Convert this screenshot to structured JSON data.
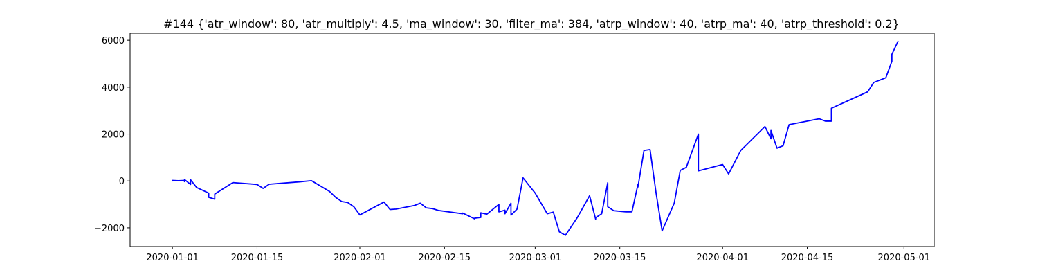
{
  "chart_data": {
    "type": "line",
    "title": "#144 {'atr_window': 80, 'atr_multiply': 4.5, 'ma_window': 30, 'filter_ma': 384, 'atrp_window': 40, 'atrp_ma': 40, 'atrp_threshold': 0.2}",
    "xlabel": "",
    "ylabel": "",
    "x_tick_labels": [
      "2020-01-01",
      "2020-01-15",
      "2020-02-01",
      "2020-02-15",
      "2020-03-01",
      "2020-03-15",
      "2020-04-01",
      "2020-04-15",
      "2020-05-01"
    ],
    "y_tick_labels": [
      "−2000",
      "0",
      "2000",
      "4000",
      "6000"
    ],
    "y_ticks": [
      -2000,
      0,
      2000,
      4000,
      6000
    ],
    "xlim": [
      "2019-12-25",
      "2020-05-06"
    ],
    "ylim": [
      -2800,
      6300
    ],
    "grid": false,
    "legend": "none",
    "series": [
      {
        "color": "#0000ff",
        "points": [
          [
            "2020-01-01",
            0
          ],
          [
            "2020-01-01",
            20
          ],
          [
            "2020-01-02",
            10
          ],
          [
            "2020-01-03",
            20
          ],
          [
            "2020-01-03",
            -30
          ],
          [
            "2020-01-03",
            60
          ],
          [
            "2020-01-04",
            -150
          ],
          [
            "2020-01-04",
            50
          ],
          [
            "2020-01-05",
            -280
          ],
          [
            "2020-01-07",
            -520
          ],
          [
            "2020-01-07",
            -700
          ],
          [
            "2020-01-08",
            -780
          ],
          [
            "2020-01-08",
            -560
          ],
          [
            "2020-01-11",
            -70
          ],
          [
            "2020-01-15",
            -150
          ],
          [
            "2020-01-16",
            -320
          ],
          [
            "2020-01-17",
            -140
          ],
          [
            "2020-01-22",
            -40
          ],
          [
            "2020-01-24",
            10
          ],
          [
            "2020-01-27",
            -450
          ],
          [
            "2020-01-28",
            -700
          ],
          [
            "2020-01-29",
            -880
          ],
          [
            "2020-01-30",
            -920
          ],
          [
            "2020-01-31",
            -1100
          ],
          [
            "2020-02-01",
            -1450
          ],
          [
            "2020-02-05",
            -900
          ],
          [
            "2020-02-06",
            -1220
          ],
          [
            "2020-02-07",
            -1200
          ],
          [
            "2020-02-10",
            -1050
          ],
          [
            "2020-02-11",
            -950
          ],
          [
            "2020-02-12",
            -1150
          ],
          [
            "2020-02-13",
            -1180
          ],
          [
            "2020-02-14",
            -1260
          ],
          [
            "2020-02-18",
            -1400
          ],
          [
            "2020-02-18",
            -1370
          ],
          [
            "2020-02-20",
            -1620
          ],
          [
            "2020-02-20",
            -1590
          ],
          [
            "2020-02-21",
            -1560
          ],
          [
            "2020-02-21",
            -1360
          ],
          [
            "2020-02-22",
            -1420
          ],
          [
            "2020-02-24",
            -1000
          ],
          [
            "2020-02-24",
            -1320
          ],
          [
            "2020-02-25",
            -1250
          ],
          [
            "2020-02-25",
            -1400
          ],
          [
            "2020-02-26",
            -950
          ],
          [
            "2020-02-26",
            -1460
          ],
          [
            "2020-02-27",
            -1200
          ],
          [
            "2020-02-28",
            130
          ],
          [
            "2020-03-01",
            -520
          ],
          [
            "2020-03-03",
            -1400
          ],
          [
            "2020-03-04",
            -1330
          ],
          [
            "2020-03-05",
            -2170
          ],
          [
            "2020-03-06",
            -2320
          ],
          [
            "2020-03-08",
            -1550
          ],
          [
            "2020-03-10",
            -630
          ],
          [
            "2020-03-11",
            -1630
          ],
          [
            "2020-03-11",
            -1570
          ],
          [
            "2020-03-12",
            -1400
          ],
          [
            "2020-03-13",
            -80
          ],
          [
            "2020-03-13",
            -1100
          ],
          [
            "2020-03-14",
            -1270
          ],
          [
            "2020-03-16",
            -1320
          ],
          [
            "2020-03-17",
            -1320
          ],
          [
            "2020-03-18",
            -150
          ],
          [
            "2020-03-18",
            -260
          ],
          [
            "2020-03-19",
            1300
          ],
          [
            "2020-03-20",
            1340
          ],
          [
            "2020-03-21",
            -520
          ],
          [
            "2020-03-22",
            -2130
          ],
          [
            "2020-03-24",
            -950
          ],
          [
            "2020-03-25",
            450
          ],
          [
            "2020-03-26",
            580
          ],
          [
            "2020-03-28",
            2000
          ],
          [
            "2020-03-28",
            430
          ],
          [
            "2020-04-01",
            700
          ],
          [
            "2020-04-02",
            300
          ],
          [
            "2020-04-04",
            1300
          ],
          [
            "2020-04-08",
            2320
          ],
          [
            "2020-04-09",
            1800
          ],
          [
            "2020-04-09",
            2150
          ],
          [
            "2020-04-10",
            1400
          ],
          [
            "2020-04-11",
            1500
          ],
          [
            "2020-04-12",
            2400
          ],
          [
            "2020-04-17",
            2650
          ],
          [
            "2020-04-18",
            2550
          ],
          [
            "2020-04-19",
            2550
          ],
          [
            "2020-04-19",
            3100
          ],
          [
            "2020-04-25",
            3800
          ],
          [
            "2020-04-26",
            4200
          ],
          [
            "2020-04-28",
            4400
          ],
          [
            "2020-04-29",
            5100
          ],
          [
            "2020-04-29",
            5400
          ],
          [
            "2020-04-30",
            5950
          ]
        ]
      }
    ]
  }
}
